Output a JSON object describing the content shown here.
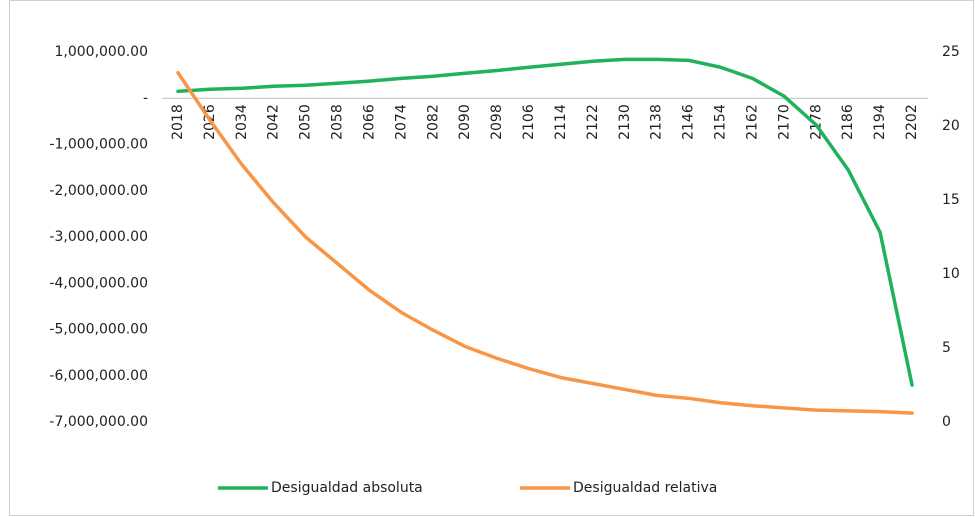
{
  "chart_data": {
    "type": "line",
    "categories": [
      "2018",
      "2026",
      "2034",
      "2042",
      "2050",
      "2058",
      "2066",
      "2074",
      "2082",
      "2090",
      "2098",
      "2106",
      "2114",
      "2122",
      "2130",
      "2138",
      "2146",
      "2154",
      "2162",
      "2170",
      "2178",
      "2186",
      "2194",
      "2202"
    ],
    "series": [
      {
        "name": "Desigualdad absoluta",
        "color": "#1fb25a",
        "values": [
          150000,
          195000,
          215000,
          260000,
          280000,
          325000,
          370000,
          430000,
          475000,
          540000,
          600000,
          670000,
          735000,
          800000,
          840000,
          840000,
          820000,
          670000,
          430000,
          40000,
          -580000,
          -1550000,
          -2900000,
          -6200000
        ]
      },
      {
        "name": "Desigualdad relativa",
        "color": "#f79646",
        "axis": "y2",
        "values": [
          23.6,
          20.4,
          17.4,
          14.8,
          12.5,
          10.7,
          8.9,
          7.4,
          6.2,
          5.1,
          4.3,
          3.6,
          3.0,
          2.6,
          2.2,
          1.8,
          1.6,
          1.3,
          1.1,
          0.95,
          0.8,
          0.75,
          0.7,
          0.6
        ]
      }
    ],
    "ylim": [
      -7000000,
      1000000
    ],
    "yticks": [
      {
        "value": 1000000,
        "label": "1,000,000.00"
      },
      {
        "value": 0,
        "label": "-"
      },
      {
        "value": -1000000,
        "label": "-1,000,000.00"
      },
      {
        "value": -2000000,
        "label": "-2,000,000.00"
      },
      {
        "value": -3000000,
        "label": "-3,000,000.00"
      },
      {
        "value": -4000000,
        "label": "-4,000,000.00"
      },
      {
        "value": -5000000,
        "label": "-5,000,000.00"
      },
      {
        "value": -6000000,
        "label": "-6,000,000.00"
      },
      {
        "value": -7000000,
        "label": "-7,000,000.00"
      }
    ],
    "y2lim": [
      0,
      25
    ],
    "y2ticks": [
      0,
      5,
      10,
      15,
      20,
      25
    ],
    "legend": "bottom"
  }
}
